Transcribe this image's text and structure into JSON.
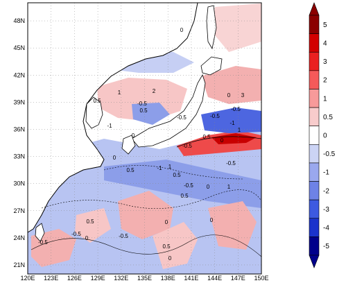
{
  "map": {
    "lon_ticks": [
      "120E",
      "123E",
      "126E",
      "129E",
      "132E",
      "135E",
      "138E",
      "141E",
      "144E",
      "147E",
      "150E"
    ],
    "lat_ticks": [
      "48N",
      "45N",
      "42N",
      "39N",
      "36N",
      "33N",
      "30N",
      "27N",
      "24N",
      "21N"
    ],
    "lon_range": [
      120,
      150
    ],
    "lat_range": [
      20,
      50
    ],
    "grid": true,
    "contour_labels": [
      "0",
      "0.5",
      "-0.5",
      "1",
      "-1",
      "2",
      "3",
      "-0.5",
      "0",
      "0.5",
      "0",
      "-0.5",
      "-0.5",
      "1",
      "-1",
      "0",
      "0.5",
      "-0.5",
      "1",
      "-1",
      "0",
      "0.5",
      "0.5",
      "-0.5",
      "0",
      "1",
      "-0.5",
      "0.5",
      "0.5",
      "0",
      "-0.5",
      "-0.5",
      "0",
      "0",
      "0.5",
      "-0.5",
      "0"
    ]
  },
  "colorbar": {
    "labels": [
      "5",
      "4",
      "3",
      "2",
      "1",
      "0.5",
      "0",
      "-0.5",
      "-1",
      "-2",
      "-3",
      "-4",
      "-5"
    ],
    "colors": [
      "#8b0000",
      "#d20000",
      "#ea2020",
      "#f55a5a",
      "#f79a9a",
      "#f8cccc",
      "#ffffff",
      "#ccd4f5",
      "#9aa8ee",
      "#6e82e6",
      "#3d5ae0",
      "#1a33cc",
      "#00008b"
    ]
  }
}
